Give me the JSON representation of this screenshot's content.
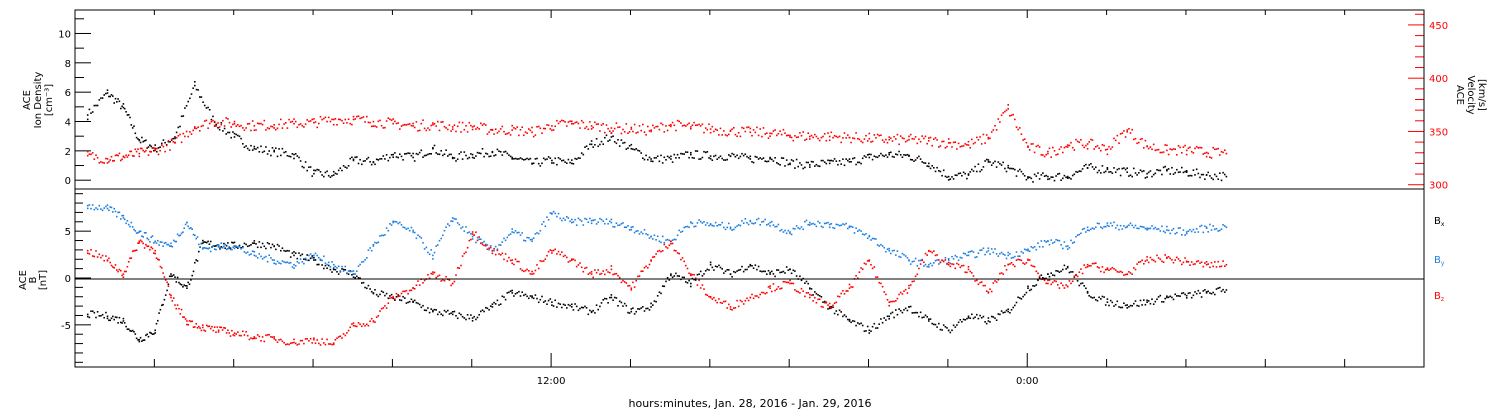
{
  "xlabel": "hours:minutes, Jan. 28, 2016 - Jan. 29, 2016",
  "x_tick_labels": [
    "12:00",
    "0:00"
  ],
  "colors": {
    "black": "#000000",
    "red": "#ff0000",
    "blue": "#1f7fe0"
  },
  "chart_data": [
    {
      "type": "scatter",
      "panel": "top",
      "ylabel_left": [
        "ACE",
        "Ion Density",
        "[cm⁻³]"
      ],
      "ylabel_right": [
        "ACE",
        "Velocity",
        "[km/s]"
      ],
      "left_ticks": [
        "0",
        "2",
        "4",
        "6",
        "8",
        "10"
      ],
      "right_ticks": [
        "300",
        "350",
        "400",
        "450"
      ],
      "ylim_left": [
        -0.6,
        11.6
      ],
      "ylim_right": [
        296,
        464
      ],
      "grid": false,
      "x_hours": [
        0,
        34
      ],
      "series": [
        {
          "color": "black",
          "axis": "left",
          "x": [
            0.3,
            0.8,
            1.2,
            1.6,
            2.0,
            2.5,
            3.0,
            3.5,
            4.0,
            4.5,
            5.0,
            5.5,
            6.0,
            6.5,
            7.0,
            7.5,
            8.0,
            8.5,
            9.0,
            9.5,
            10.0,
            10.5,
            11.0,
            11.5,
            12.0,
            12.5,
            13.0,
            13.5,
            14.0,
            14.5,
            15.0,
            15.5,
            16.0,
            16.5,
            17.0,
            17.5,
            18.0,
            18.5,
            19.0,
            19.5,
            20.0,
            20.5,
            21.0,
            21.5,
            22.0,
            22.5,
            23.0,
            23.5,
            24.0,
            24.5,
            25.0,
            25.5,
            26.0,
            26.5,
            27.0,
            27.5,
            28.0,
            28.5,
            29.0
          ],
          "y": [
            4.5,
            6.0,
            5.0,
            2.8,
            2.2,
            3.0,
            6.5,
            4.0,
            3.0,
            2.2,
            2.0,
            1.8,
            0.5,
            0.4,
            1.4,
            1.3,
            1.8,
            1.6,
            2.2,
            1.6,
            1.8,
            2.0,
            1.6,
            1.2,
            1.4,
            1.2,
            2.5,
            3.0,
            2.2,
            1.5,
            1.5,
            1.8,
            1.7,
            1.7,
            1.5,
            1.6,
            1.2,
            1.1,
            1.2,
            1.3,
            1.6,
            1.8,
            1.7,
            1.2,
            0.3,
            0.4,
            1.3,
            0.9,
            0.2,
            0.3,
            0.3,
            0.9,
            0.8,
            0.6,
            0.5,
            0.7,
            0.6,
            0.4,
            0.3
          ]
        },
        {
          "color": "red",
          "axis": "right",
          "x": [
            0.3,
            0.8,
            1.2,
            1.6,
            2.0,
            2.5,
            3.0,
            3.5,
            4.0,
            4.5,
            5.0,
            5.5,
            6.0,
            6.5,
            7.0,
            7.5,
            8.0,
            8.5,
            9.0,
            9.5,
            10.0,
            10.5,
            11.0,
            11.5,
            12.0,
            12.5,
            13.0,
            13.5,
            14.0,
            14.5,
            15.0,
            15.5,
            16.0,
            16.5,
            17.0,
            17.5,
            18.0,
            18.5,
            19.0,
            19.5,
            20.0,
            20.5,
            21.0,
            21.5,
            22.0,
            22.5,
            23.0,
            23.5,
            24.0,
            24.5,
            25.0,
            25.5,
            26.0,
            26.5,
            27.0,
            27.5,
            28.0,
            28.5,
            29.0
          ],
          "y": [
            328,
            325,
            327,
            330,
            333,
            340,
            355,
            360,
            358,
            356,
            357,
            358,
            359,
            362,
            362,
            360,
            358,
            356,
            357,
            355,
            355,
            352,
            352,
            350,
            356,
            358,
            356,
            354,
            353,
            352,
            357,
            355,
            353,
            351,
            350,
            349,
            347,
            346,
            346,
            345,
            344,
            343,
            343,
            342,
            340,
            338,
            345,
            372,
            336,
            330,
            338,
            339,
            334,
            352,
            337,
            333,
            333,
            331,
            330
          ]
        }
      ]
    },
    {
      "type": "scatter",
      "panel": "bottom",
      "ylabel_left": [
        "ACE",
        "B",
        "[nT]"
      ],
      "left_ticks": [
        "-5",
        "0",
        "5"
      ],
      "ylim_left": [
        -9.5,
        9.5
      ],
      "legend": [
        "Bx",
        "By",
        "Bz"
      ],
      "legend_placement": "right",
      "grid": false,
      "x_hours": [
        0,
        34
      ],
      "series": [
        {
          "name": "Bx",
          "color": "black",
          "x": [
            0.3,
            0.8,
            1.2,
            1.6,
            2.0,
            2.4,
            2.8,
            3.2,
            3.6,
            4.0,
            4.5,
            5.0,
            5.5,
            6.0,
            6.5,
            7.0,
            7.5,
            8.0,
            8.5,
            9.0,
            9.5,
            10.0,
            10.5,
            11.0,
            11.5,
            12.0,
            12.5,
            13.0,
            13.5,
            14.0,
            14.5,
            15.0,
            15.5,
            16.0,
            16.5,
            17.0,
            17.5,
            18.0,
            18.5,
            19.0,
            19.5,
            20.0,
            20.5,
            21.0,
            21.5,
            22.0,
            22.5,
            23.0,
            23.5,
            24.0,
            24.5,
            25.0,
            25.5,
            26.0,
            26.5,
            27.0,
            27.5,
            28.0,
            28.5,
            29.0
          ],
          "y": [
            -3.8,
            -4.0,
            -4.5,
            -6.5,
            -5.5,
            0.5,
            -1.0,
            3.8,
            3.6,
            3.5,
            3.8,
            3.5,
            2.5,
            2.0,
            1.0,
            0.5,
            -1.5,
            -2.0,
            -2.5,
            -3.5,
            -3.8,
            -4.2,
            -3.0,
            -1.5,
            -2.0,
            -2.5,
            -3.0,
            -3.5,
            -2.0,
            -3.5,
            -3.0,
            0.5,
            -0.5,
            1.5,
            0.5,
            1.5,
            0.5,
            1.0,
            -1.0,
            -3.0,
            -4.5,
            -5.5,
            -4.0,
            -3.0,
            -4.5,
            -5.5,
            -4.0,
            -4.5,
            -3.5,
            -1.0,
            0.5,
            1.2,
            -1.5,
            -2.5,
            -2.8,
            -2.5,
            -2.0,
            -1.8,
            -1.5,
            -1.2
          ]
        },
        {
          "name": "By",
          "color": "blue",
          "x": [
            0.3,
            0.8,
            1.2,
            1.6,
            2.0,
            2.4,
            2.8,
            3.2,
            3.6,
            4.0,
            4.5,
            5.0,
            5.5,
            6.0,
            6.5,
            7.0,
            7.5,
            8.0,
            8.5,
            9.0,
            9.5,
            10.0,
            10.5,
            11.0,
            11.5,
            12.0,
            12.5,
            13.0,
            13.5,
            14.0,
            14.5,
            15.0,
            15.5,
            16.0,
            16.5,
            17.0,
            17.5,
            18.0,
            18.5,
            19.0,
            19.5,
            20.0,
            20.5,
            21.0,
            21.5,
            22.0,
            22.5,
            23.0,
            23.5,
            24.0,
            24.5,
            25.0,
            25.5,
            26.0,
            26.5,
            27.0,
            27.5,
            28.0,
            28.5,
            29.0
          ],
          "y": [
            7.8,
            7.5,
            6.5,
            5.0,
            4.0,
            3.5,
            6.0,
            3.2,
            3.4,
            3.5,
            2.5,
            2.0,
            1.5,
            2.5,
            1.5,
            0.5,
            3.5,
            6.0,
            5.0,
            2.5,
            6.5,
            4.5,
            3.0,
            5.0,
            4.0,
            7.0,
            6.0,
            6.2,
            6.0,
            5.5,
            4.5,
            4.0,
            6.0,
            5.8,
            5.5,
            6.2,
            6.0,
            5.0,
            6.0,
            5.8,
            5.5,
            4.5,
            3.0,
            2.0,
            1.5,
            2.0,
            2.5,
            3.0,
            2.5,
            3.0,
            4.0,
            3.5,
            5.5,
            5.7,
            5.6,
            5.4,
            5.2,
            5.0,
            5.4,
            5.5
          ]
        },
        {
          "name": "Bz",
          "color": "red",
          "x": [
            0.3,
            0.8,
            1.2,
            1.6,
            2.0,
            2.4,
            2.8,
            3.2,
            3.6,
            4.0,
            4.5,
            5.0,
            5.5,
            6.0,
            6.5,
            7.0,
            7.5,
            8.0,
            8.5,
            9.0,
            9.5,
            10.0,
            10.5,
            11.0,
            11.5,
            12.0,
            12.5,
            13.0,
            13.5,
            14.0,
            14.5,
            15.0,
            15.5,
            16.0,
            16.5,
            17.0,
            17.5,
            18.0,
            18.5,
            19.0,
            19.5,
            20.0,
            20.5,
            21.0,
            21.5,
            22.0,
            22.5,
            23.0,
            23.5,
            24.0,
            24.5,
            25.0,
            25.5,
            26.0,
            26.5,
            27.0,
            27.5,
            28.0,
            28.5,
            29.0
          ],
          "y": [
            3.0,
            2.0,
            0.5,
            4.0,
            3.0,
            -2.0,
            -4.5,
            -5.2,
            -5.5,
            -5.8,
            -6.2,
            -6.4,
            -6.8,
            -6.5,
            -7.0,
            -5.0,
            -4.5,
            -2.0,
            -1.0,
            0.5,
            -0.5,
            5.0,
            3.0,
            2.0,
            0.5,
            3.0,
            2.0,
            0.5,
            1.0,
            -1.0,
            2.0,
            4.0,
            0.5,
            -2.0,
            -3.0,
            -2.0,
            -1.0,
            -0.5,
            -2.0,
            -3.0,
            -1.0,
            2.0,
            -2.5,
            -1.0,
            3.0,
            1.5,
            1.0,
            -1.5,
            1.5,
            2.0,
            -0.5,
            -0.8,
            1.5,
            1.0,
            0.5,
            2.0,
            2.2,
            1.8,
            1.5,
            1.5
          ]
        }
      ]
    }
  ]
}
